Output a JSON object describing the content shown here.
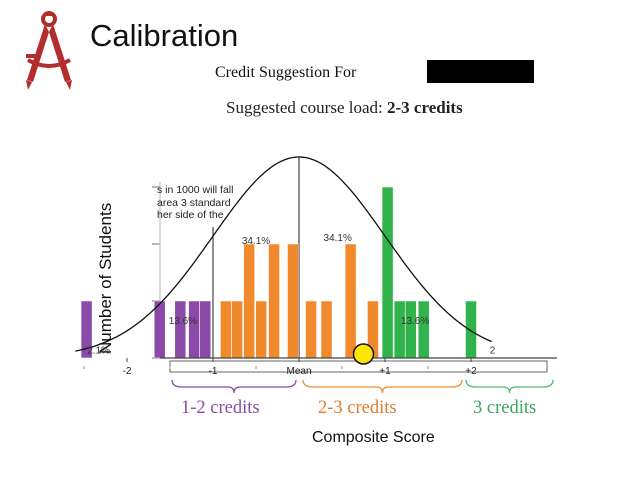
{
  "slide": {
    "title": "Calibration",
    "subtitle": "Credit Suggestion For",
    "course_load_label": "Suggested course load",
    "course_load_value": "2-3 credits"
  },
  "colors": {
    "purple": "#8b4aa8",
    "orange": "#f08a2c",
    "green": "#2fb34a",
    "marker": "#ffe600",
    "logo": "#b32d2d"
  },
  "icons": {
    "logo": "compass-icon"
  },
  "chart_data": {
    "type": "bar",
    "xlabel": "Composite Score",
    "ylabel": "Number of Students",
    "ylim": [
      0,
      3
    ],
    "xlim": [
      -2.6,
      2.25
    ],
    "note_lines": [
      "s in 1000 will fall",
      "area 3 standard",
      "her side of the"
    ],
    "x_ticks": [
      {
        "value": -2,
        "label": "-2"
      },
      {
        "value": -1,
        "label": "-1"
      },
      {
        "value": 0,
        "label": "Mean"
      },
      {
        "value": 1,
        "label": "+1"
      },
      {
        "value": 2,
        "label": "+2"
      }
    ],
    "percent_labels": [
      {
        "x": -2.33,
        "y": 0.08,
        "label": "2.1%"
      },
      {
        "x": -1.35,
        "y": 0.6,
        "label": "13.6%"
      },
      {
        "x": -0.5,
        "y": 2.0,
        "label": "34.1%"
      },
      {
        "x": 0.45,
        "y": 2.05,
        "label": "34.1%"
      },
      {
        "x": 1.35,
        "y": 0.6,
        "label": "13.6%"
      },
      {
        "x": 2.25,
        "y": 0.08,
        "label": "2"
      }
    ],
    "markers": [
      {
        "x": 0.75,
        "y": 0
      }
    ],
    "series": [
      {
        "name": "1-2 credits",
        "color": "#8b4aa8",
        "x": [
          -2.47,
          -1.62,
          -1.38,
          -1.22,
          -1.09
        ],
        "values": [
          1,
          1,
          1,
          1,
          1
        ]
      },
      {
        "name": "2-3 credits",
        "color": "#f08a2c",
        "x": [
          -0.85,
          -0.72,
          -0.58,
          -0.44,
          -0.29,
          -0.07,
          0.14,
          0.32,
          0.6,
          0.86
        ],
        "values": [
          1,
          1,
          2,
          1,
          2,
          2,
          1,
          1,
          2,
          1
        ]
      },
      {
        "name": "3 credits",
        "color": "#2fb34a",
        "x": [
          1.03,
          1.17,
          1.3,
          1.45,
          2.0
        ],
        "values": [
          3,
          1,
          1,
          1,
          1
        ]
      }
    ]
  }
}
